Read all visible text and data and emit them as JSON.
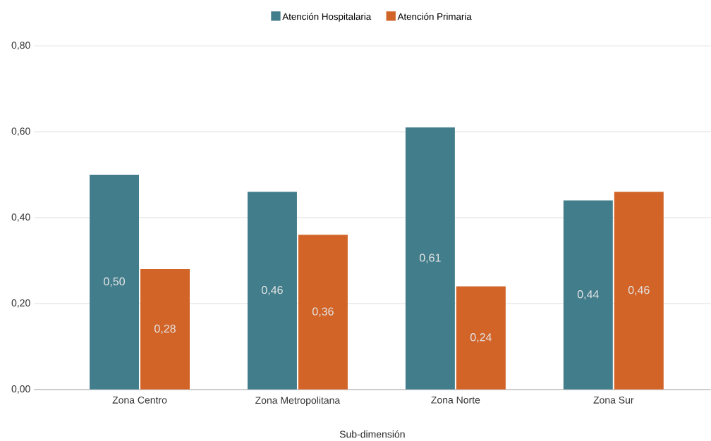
{
  "chart_data": {
    "type": "bar",
    "xlabel": "Sub-dimensión",
    "categories": [
      "Zona Centro",
      "Zona Metropolitana",
      "Zona Norte",
      "Zona Sur"
    ],
    "series": [
      {
        "name": "Atención Hospitalaria",
        "color": "#427d8b",
        "values": [
          0.5,
          0.46,
          0.61,
          0.44
        ],
        "value_labels": [
          "0,50",
          "0,46",
          "0,61",
          "0,44"
        ]
      },
      {
        "name": "Atención Primaria",
        "color": "#d26428",
        "values": [
          0.28,
          0.36,
          0.24,
          0.46
        ],
        "value_labels": [
          "0,28",
          "0,36",
          "0,24",
          "0,46"
        ]
      }
    ],
    "ylim": [
      0,
      0.8
    ],
    "yticks": [
      {
        "value": 0,
        "label": "0,00"
      },
      {
        "value": 0.2,
        "label": "0,20"
      },
      {
        "value": 0.4,
        "label": "0,40"
      },
      {
        "value": 0.6,
        "label": "0,60"
      },
      {
        "value": 0.8,
        "label": "0,80"
      }
    ],
    "grid": "y",
    "legend": "top"
  }
}
